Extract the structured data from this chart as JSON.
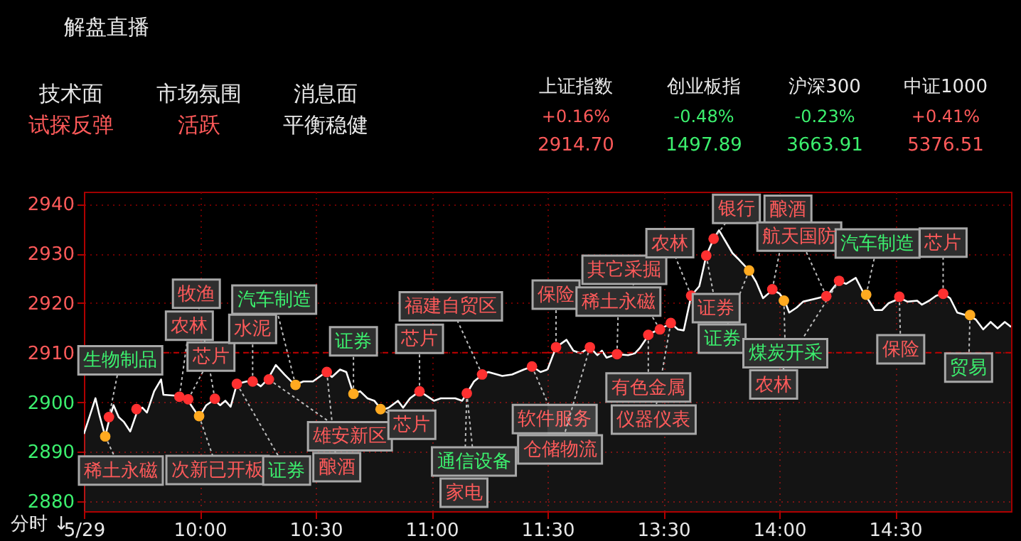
{
  "chart_data": [
    {
      "type": "area",
      "title": "解盘直播",
      "x": [
        9.5,
        9.55,
        9.567,
        9.592,
        9.612,
        9.628,
        9.65,
        9.673,
        9.7,
        9.732,
        9.752,
        9.772,
        9.803,
        9.833,
        9.843,
        9.905,
        9.945,
        9.977,
        9.997,
        10.028,
        10.062,
        10.088,
        10.11,
        10.133,
        10.16,
        10.202,
        10.232,
        10.263,
        10.293,
        10.328,
        10.365,
        10.41,
        10.447,
        10.488,
        10.545,
        10.57,
        10.605,
        10.632,
        10.662,
        10.692,
        10.723,
        10.753,
        10.785,
        10.815,
        10.855,
        10.877,
        10.907,
        10.948,
        10.978,
        11.01,
        11.04,
        11.102,
        11.132,
        11.152,
        11.183,
        11.22,
        11.245,
        11.305,
        11.347,
        11.398,
        11.435,
        11.47,
        11.5
      ],
      "series": [
        {
          "color": "#ffffff",
          "values": [
            2893.6,
            2900.8,
            2897.4,
            2893.1,
            2897.0,
            2899.4,
            2897.0,
            2896.0,
            2894.1,
            2898.4,
            2898.9,
            2897.9,
            2902.2,
            2904.6,
            2901.5,
            2901.3,
            2900.6,
            2898.4,
            2897.0,
            2899.4,
            2900.5,
            2899.4,
            2900.3,
            2899.1,
            2903.7,
            2904.2,
            2904.2,
            2903.2,
            2904.6,
            2907.5,
            2905.6,
            2903.5,
            2904.2,
            2904.2,
            2906.1,
            2905.1,
            2906.6,
            2906.1,
            2901.8,
            2902.2,
            2900.8,
            2900.3,
            2898.4,
            2898.9,
            2900.3,
            2898.9,
            2900.8,
            2902.2,
            2901.3,
            2900.3,
            2900.8,
            2900.8,
            2900.3,
            2901.8,
            2904.2,
            2905.6,
            2906.1,
            2905.3,
            2905.6,
            2906.6,
            2907.2,
            2906.1,
            2906.6
          ]
        },
        {
          "type": "scatter",
          "color": "#ff3030",
          "marker": "circle",
          "x": [
            9.608,
            9.727,
            9.912,
            9.95,
            10.065,
            10.16,
            10.228,
            10.298,
            10.548,
            10.948,
            11.152,
            11.218,
            11.433
          ],
          "values": [
            2897.0,
            2898.6,
            2901.1,
            2900.6,
            2900.7,
            2903.7,
            2904.2,
            2904.6,
            2906.1,
            2902.2,
            2901.8,
            2905.6,
            2907.2
          ]
        },
        {
          "type": "scatter",
          "color": "#ffaa20",
          "marker": "circle",
          "x": [
            9.592,
            9.997,
            10.413,
            10.663,
            10.78
          ],
          "values": [
            2893.1,
            2897.2,
            2903.5,
            2901.7,
            2898.6
          ]
        }
      ],
      "xlim": [
        9.5,
        11.5
      ],
      "xticks": [
        {
          "value": 9.5,
          "label": "5/29"
        },
        {
          "value": 10,
          "label": "10:00"
        },
        {
          "value": 10.5,
          "label": "10:30"
        },
        {
          "value": 11,
          "label": "11:00"
        },
        {
          "value": 11.5,
          "label": "11:30"
        }
      ],
      "ylim": [
        2878,
        2942.5
      ],
      "yticks": [
        2880,
        2890,
        2900,
        2910,
        2920,
        2930,
        2940
      ],
      "grid": true,
      "ref_lines": [
        {
          "axis": "y",
          "value": 2910,
          "color": "#c00000",
          "line_style": "dashed"
        }
      ],
      "annotations": [
        "技术面",
        "试探反弹",
        "市场氛围",
        "活跃",
        "消息面",
        "平衡稳健",
        "上证指数",
        "+0.16%",
        "2914.70",
        "创业板指",
        "-0.48%",
        "1497.89",
        "沪深300",
        "-0.23%",
        "3663.91",
        "中证1000",
        "+0.41%",
        "5376.51",
        "分时 ↓",
        {
          "text": "生物制品",
          "x": 9.608,
          "y": 2897.0
        },
        {
          "text": "稀土永磁",
          "x": 9.592,
          "y": 2893.1
        },
        {
          "text": "芯片",
          "x": 9.95,
          "y": 2900.6
        },
        {
          "text": "农林",
          "x": 9.912,
          "y": 2901.1
        },
        {
          "text": "牧渔",
          "x": 10.065,
          "y": 2900.7
        },
        {
          "text": "次新已开板",
          "x": 9.997,
          "y": 2897.2
        },
        {
          "text": "水泥",
          "x": 10.228,
          "y": 2904.2
        },
        {
          "text": "证券",
          "x": 10.16,
          "y": 2903.7
        },
        {
          "text": "汽车制造",
          "x": 10.413,
          "y": 2903.5
        },
        {
          "text": "雄安新区",
          "x": 10.298,
          "y": 2904.6
        },
        {
          "text": "酿酒",
          "x": 10.548,
          "y": 2906.1
        },
        {
          "text": "证券",
          "x": 10.663,
          "y": 2901.7
        },
        {
          "text": "芯片",
          "x": 10.78,
          "y": 2898.6
        },
        {
          "text": "芯片",
          "x": 10.948,
          "y": 2902.2
        },
        {
          "text": "福建自贸区",
          "x": 11.218,
          "y": 2905.6
        },
        {
          "text": "通信设备",
          "x": 11.152,
          "y": 2901.8
        },
        {
          "text": "家电",
          "x": 11.152,
          "y": 2901.8
        },
        {
          "text": "软件服务",
          "x": 11.433,
          "y": 2907.2
        }
      ]
    },
    {
      "type": "area",
      "x": [
        13,
        13.037,
        13.082,
        13.112,
        13.143,
        13.183,
        13.215,
        13.235,
        13.255,
        13.3,
        13.348,
        13.378,
        13.398,
        13.44,
        13.482,
        13.533,
        13.563,
        13.588,
        13.62,
        13.655,
        13.685,
        13.717,
        13.74,
        13.768,
        13.798,
        13.828,
        13.87,
        13.9,
        13.93,
        13.972,
        14.002,
        14.023,
        14.043,
        14.075,
        14.103,
        14.165,
        14.207,
        14.257,
        14.288,
        14.33,
        14.36,
        14.38,
        14.412,
        14.443,
        14.472,
        14.523,
        14.553,
        14.595,
        14.615,
        14.647,
        14.677,
        14.708,
        14.737,
        14.768,
        14.818,
        14.848,
        14.88,
        14.912,
        14.942,
        14.973,
        15
      ],
      "series": [
        {
          "color": "#ffffff",
          "values": [
            2906.6,
            2911.1,
            2912.6,
            2910.4,
            2909.9,
            2911.1,
            2909.5,
            2910.4,
            2909.0,
            2909.7,
            2909.5,
            2909.9,
            2910.9,
            2913.8,
            2914.7,
            2915.9,
            2914.7,
            2914.5,
            2921.5,
            2923.4,
            2929.6,
            2933.0,
            2934.7,
            2932.5,
            2930.1,
            2928.7,
            2926.6,
            2924.3,
            2921.0,
            2922.7,
            2921.9,
            2920.5,
            2918.1,
            2919.1,
            2920.3,
            2921.0,
            2921.5,
            2924.5,
            2923.9,
            2925.1,
            2922.4,
            2921.0,
            2918.6,
            2918.6,
            2920.0,
            2921.0,
            2920.3,
            2920.5,
            2919.7,
            2920.5,
            2921.5,
            2921.9,
            2921.0,
            2918.1,
            2917.4,
            2916.7,
            2914.7,
            2916.2,
            2914.9,
            2916.2,
            2915.2
          ]
        },
        {
          "type": "scatter",
          "color": "#ff3030",
          "marker": "circle",
          "x": [
            13.037,
            13.183,
            13.3,
            13.435,
            13.485,
            13.532,
            13.62,
            13.685,
            13.717,
            13.97,
            14.203,
            14.258,
            14.518,
            14.707
          ],
          "values": [
            2911.1,
            2911.1,
            2909.7,
            2913.6,
            2914.7,
            2916.0,
            2921.5,
            2929.6,
            2933.0,
            2922.8,
            2921.4,
            2924.5,
            2921.3,
            2921.9
          ]
        },
        {
          "type": "scatter",
          "color": "#ffaa20",
          "marker": "circle",
          "x": [
            13.87,
            14.02,
            14.375,
            14.823
          ],
          "values": [
            2926.6,
            2920.5,
            2921.7,
            2917.6
          ]
        }
      ],
      "xlim": [
        13,
        15
      ],
      "xticks": [
        {
          "value": 13.5,
          "label": "13:30"
        },
        {
          "value": 14,
          "label": "14:00"
        },
        {
          "value": 14.5,
          "label": "14:30"
        }
      ],
      "ylim": [
        2878,
        2942.5
      ],
      "yticks": [
        2880,
        2890,
        2900,
        2910,
        2920,
        2930,
        2940
      ],
      "grid": true,
      "tick_labels": "x",
      "ref_lines": [
        {
          "axis": "y",
          "value": 2910,
          "color": "#c00000",
          "line_style": "dashed"
        }
      ],
      "annotations": [
        {
          "text": "保险",
          "x": 13.037,
          "y": 2911.1
        },
        {
          "text": "仓储物流",
          "x": 13.183,
          "y": 2911.1
        },
        {
          "text": "稀土永磁",
          "x": 13.3,
          "y": 2909.7
        },
        {
          "text": "其它采掘",
          "x": 13.485,
          "y": 2914.7
        },
        {
          "text": "有色金属",
          "x": 13.435,
          "y": 2913.6
        },
        {
          "text": "仪器仪表",
          "x": 13.532,
          "y": 2916.0
        },
        {
          "text": "农林",
          "x": 13.62,
          "y": 2921.5
        },
        {
          "text": "证券",
          "x": 13.685,
          "y": 2929.6
        },
        {
          "text": "银行",
          "x": 13.717,
          "y": 2933.0
        },
        {
          "text": "证券",
          "x": 13.87,
          "y": 2926.6
        },
        {
          "text": "酿酒",
          "x": 13.97,
          "y": 2922.8
        },
        {
          "text": "航天国防",
          "x": 14.203,
          "y": 2921.4
        },
        {
          "text": "煤炭开采",
          "x": 14.02,
          "y": 2920.5
        },
        {
          "text": "农林",
          "x": 14.258,
          "y": 2924.5
        },
        {
          "text": "汽车制造",
          "x": 14.375,
          "y": 2921.7
        },
        {
          "text": "保险",
          "x": 14.518,
          "y": 2921.3
        },
        {
          "text": "芯片",
          "x": 14.707,
          "y": 2921.9
        },
        {
          "text": "贸易",
          "x": 14.823,
          "y": 2917.6
        }
      ]
    }
  ]
}
